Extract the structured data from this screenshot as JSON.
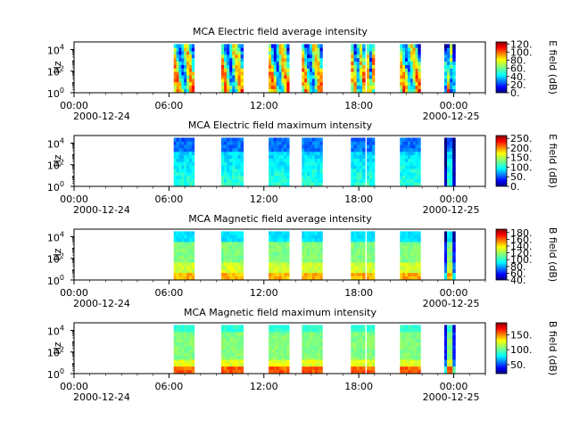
{
  "figure": {
    "xaxis": {
      "ticks": [
        "00:00",
        "06:00",
        "12:00",
        "18:00",
        "00:00"
      ],
      "date_start": "2000-12-24",
      "date_end": "2000-12-25",
      "range_hours": [
        0,
        26
      ]
    },
    "yaxis": {
      "label": "Hz",
      "ticks": [
        "10",
        "10",
        "10"
      ],
      "tick_exponents": [
        "0",
        "2",
        "4"
      ],
      "range_log10": [
        0,
        4.7
      ],
      "scale": "log"
    },
    "colormap": "jet"
  },
  "chart_data": [
    {
      "type": "heatmap",
      "title": "MCA  Electric field average intensity",
      "ylabel": "Hz",
      "colorbar_label": "E field (dB)",
      "colorbar_ticks": [
        "0.",
        "20.",
        "40.",
        "60.",
        "80.",
        "100.",
        "120."
      ],
      "colorbar_range": [
        0,
        125
      ],
      "profile": "eavg",
      "observation_blocks_hours": [
        [
          6.3,
          7.6
        ],
        [
          9.3,
          10.7
        ],
        [
          12.3,
          13.6
        ],
        [
          14.4,
          15.7
        ],
        [
          17.5,
          18.4
        ],
        [
          18.5,
          19.0
        ],
        [
          20.6,
          21.9
        ],
        [
          23.4,
          24.1
        ]
      ]
    },
    {
      "type": "heatmap",
      "title": "MCA  Electric field maximum intensity",
      "ylabel": "Hz",
      "colorbar_label": "E field (dB)",
      "colorbar_ticks": [
        "0.",
        "50.",
        "100.",
        "150.",
        "200.",
        "250."
      ],
      "colorbar_range": [
        0,
        265
      ],
      "profile": "emax",
      "observation_blocks_hours": [
        [
          6.3,
          7.6
        ],
        [
          9.3,
          10.7
        ],
        [
          12.3,
          13.6
        ],
        [
          14.4,
          15.7
        ],
        [
          17.5,
          18.4
        ],
        [
          18.5,
          19.0
        ],
        [
          20.6,
          21.9
        ],
        [
          23.4,
          24.1
        ]
      ]
    },
    {
      "type": "heatmap",
      "title": "MCA  Magnetic field average intensity",
      "ylabel": "Hz",
      "colorbar_label": "B field (dB)",
      "colorbar_ticks": [
        "40.",
        "60.",
        "80.",
        "100.",
        "120.",
        "140.",
        "160.",
        "180."
      ],
      "colorbar_range": [
        40,
        190
      ],
      "profile": "bavg",
      "observation_blocks_hours": [
        [
          6.3,
          7.6
        ],
        [
          9.3,
          10.7
        ],
        [
          12.3,
          13.6
        ],
        [
          14.4,
          15.7
        ],
        [
          17.5,
          18.4
        ],
        [
          18.5,
          19.0
        ],
        [
          20.6,
          21.9
        ],
        [
          23.4,
          24.1
        ]
      ]
    },
    {
      "type": "heatmap",
      "title": "MCA  Magnetic field maximum intensity",
      "ylabel": "Hz",
      "colorbar_label": "B field (dB)",
      "colorbar_ticks": [
        "50.",
        "100.",
        "150."
      ],
      "colorbar_range": [
        20,
        190
      ],
      "profile": "bmax",
      "observation_blocks_hours": [
        [
          6.3,
          7.6
        ],
        [
          9.3,
          10.7
        ],
        [
          12.3,
          13.6
        ],
        [
          14.4,
          15.7
        ],
        [
          17.5,
          18.4
        ],
        [
          18.5,
          19.0
        ],
        [
          20.6,
          21.9
        ],
        [
          23.4,
          24.1
        ]
      ]
    }
  ]
}
